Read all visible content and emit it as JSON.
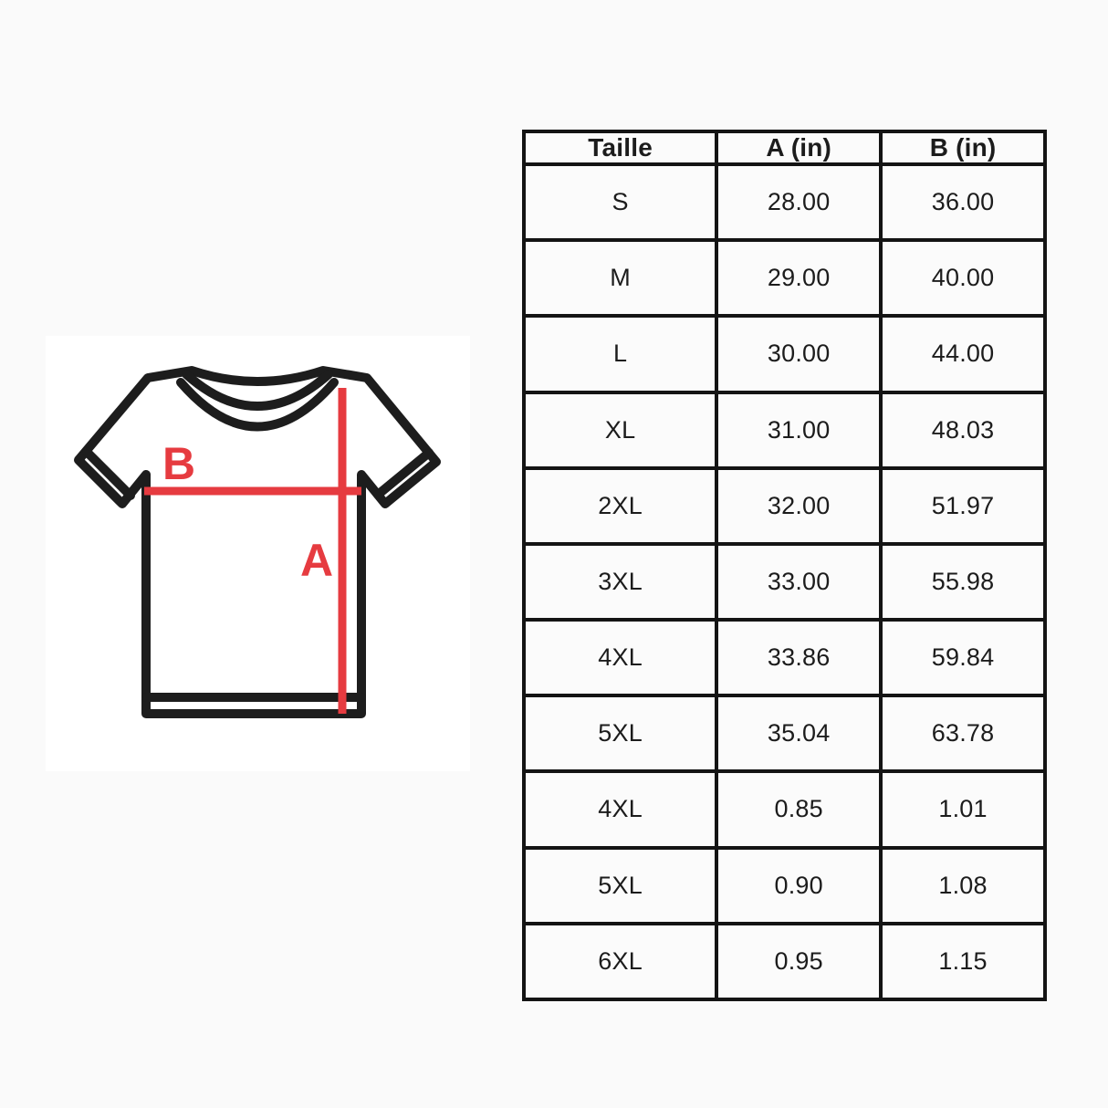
{
  "diagram": {
    "label_a": "A",
    "label_b": "B",
    "accent_color": "#e63b40",
    "outline_color": "#1d1d1d"
  },
  "table": {
    "headers": [
      "Taille",
      "A (in)",
      "B (in)"
    ],
    "rows": [
      [
        "S",
        "28.00",
        "36.00"
      ],
      [
        "M",
        "29.00",
        "40.00"
      ],
      [
        "L",
        "30.00",
        "44.00"
      ],
      [
        "XL",
        "31.00",
        "48.03"
      ],
      [
        "2XL",
        "32.00",
        "51.97"
      ],
      [
        "3XL",
        "33.00",
        "55.98"
      ],
      [
        "4XL",
        "33.86",
        "59.84"
      ],
      [
        "5XL",
        "35.04",
        "63.78"
      ],
      [
        "4XL",
        "0.85",
        "1.01"
      ],
      [
        "5XL",
        "0.90",
        "1.08"
      ],
      [
        "6XL",
        "0.95",
        "1.15"
      ]
    ]
  }
}
